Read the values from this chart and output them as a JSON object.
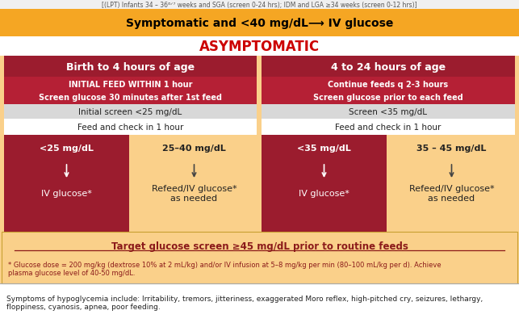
{
  "top_note": "[(LPT) Infants 34 – 36⁶ᐟ⁷ weeks and SGA (screen 0-24 hrs); IDM and LGA ≥34 weeks (screen 0-12 hrs)]",
  "symptomatic_text": "Symptomatic and <40 mg/dL⟶ IV glucose",
  "asymptomatic_text": "ASYMPTOMATIC",
  "left_header": "Birth to 4 hours of age",
  "right_header": "4 to 24 hours of age",
  "left_sub1": "INITIAL FEED WITHIN 1 hour",
  "left_sub2": "Screen glucose 30 minutes after 1",
  "left_sub2_super": "st",
  "left_sub2_end": " feed",
  "right_sub1": "Continue feeds q 2-3 hours",
  "right_sub2": "Screen glucose prior to each feed",
  "left_screen": "Initial screen <25 mg/dL",
  "right_screen": "Screen <35 mg/dL",
  "left_feed": "Feed and check in 1 hour",
  "right_feed": "Feed and check in 1 hour",
  "box1_top": "<25 mg/dL",
  "box1_bot": "IV glucose*",
  "box2_top": "25–40 mg/dL",
  "box2_bot": "Refeed/IV glucose*\nas needed",
  "box3_top": "<35 mg/dL",
  "box3_bot": "IV glucose*",
  "box4_top": "35 – 45 mg/dL",
  "box4_bot": "Refeed/IV glucose*\nas needed",
  "target_title": "Target glucose screen ≥45 mg/dL prior to routine feeds",
  "footnote1": "* Glucose dose = 200 mg/kg (dextrose 10% at 2 mL/kg) and/or IV infusion at 5–8 mg/kg per min (80–100 mL/kg per d). Achieve\nplasma glucose level of 40-50 mg/dL.",
  "footnote2": "Symptoms of hypoglycemia include: Irritability, tremors, jitteriness, exaggerated Moro reflex, high-pitched cry, seizures, lethargy,\nfloppiness, cyanosis, apnea, poor feeding.",
  "c_orange": "#F5A623",
  "c_orange_light": "#FAD08A",
  "c_red": "#9B1C2E",
  "c_red2": "#B52035",
  "c_white": "#FFFFFF",
  "c_gray": "#D8D8D8",
  "c_red_title": "#CC0000",
  "c_dark_red_text": "#8B1A1A",
  "c_black": "#000000",
  "c_note_bg": "#F0F0F0"
}
